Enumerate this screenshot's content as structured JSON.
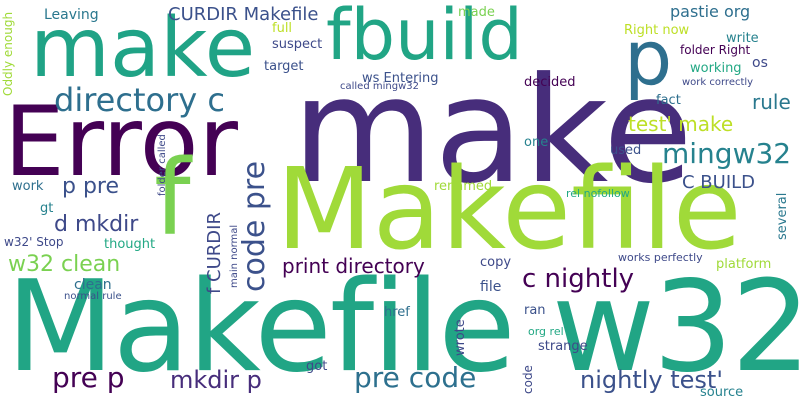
{
  "words": [
    {
      "text": "make",
      "color": "#472d7b"
    },
    {
      "text": "Makefile w32",
      "color": "#21a585"
    },
    {
      "text": "Makefile",
      "color": "#a0da39"
    },
    {
      "text": "Error",
      "color": "#440154"
    },
    {
      "text": "make",
      "color": "#20a386"
    },
    {
      "text": "fbuild",
      "color": "#21a585"
    },
    {
      "text": "p",
      "color": "#2e6f8e"
    },
    {
      "text": "f",
      "color": "#7ad151"
    },
    {
      "text": "directory c",
      "color": "#2e6f8e"
    },
    {
      "text": "code pre",
      "color": "#3b518b"
    },
    {
      "text": "mingw32",
      "color": "#26828e"
    },
    {
      "text": "pre code",
      "color": "#2d708e"
    },
    {
      "text": "pre p",
      "color": "#440154"
    },
    {
      "text": "mkdir p",
      "color": "#472d7b"
    },
    {
      "text": "nightly test'",
      "color": "#3b518b"
    },
    {
      "text": "c nightly",
      "color": "#440154"
    },
    {
      "text": "p pre",
      "color": "#3b518b"
    },
    {
      "text": "w32 clean",
      "color": "#7ad151"
    },
    {
      "text": "d mkdir",
      "color": "#3e4989"
    },
    {
      "text": "print directory",
      "color": "#440154"
    },
    {
      "text": "test' make",
      "color": "#bddf26"
    },
    {
      "text": "rule",
      "color": "#2a788e"
    },
    {
      "text": "C BUILD",
      "color": "#3b518b"
    },
    {
      "text": "f CURDIR",
      "color": "#3e4989"
    },
    {
      "text": "CURDIR Makefile",
      "color": "#3b518b"
    },
    {
      "text": "pastie org",
      "color": "#2e6f8e"
    },
    {
      "text": "os",
      "color": "#3e4989"
    },
    {
      "text": "folder Right",
      "color": "#440154"
    },
    {
      "text": "write",
      "color": "#26828e"
    },
    {
      "text": "Right now",
      "color": "#bddf26"
    },
    {
      "text": "Leaving",
      "color": "#2a788e"
    },
    {
      "text": "made",
      "color": "#7ad151"
    },
    {
      "text": "full",
      "color": "#bddf26"
    },
    {
      "text": "suspect",
      "color": "#3e4989"
    },
    {
      "text": "target",
      "color": "#3b518b"
    },
    {
      "text": "ws  Entering",
      "color": "#3b518b"
    },
    {
      "text": "called mingw32",
      "color": "#3e4989"
    },
    {
      "text": "decided",
      "color": "#440154"
    },
    {
      "text": "working",
      "color": "#22a884"
    },
    {
      "text": "work correctly",
      "color": "#3e4989"
    },
    {
      "text": "fact",
      "color": "#2e6f8e"
    },
    {
      "text": "one",
      "color": "#26828e"
    },
    {
      "text": "used",
      "color": "#3b518b"
    },
    {
      "text": "renamed",
      "color": "#a0da39"
    },
    {
      "text": "rel nofollow",
      "color": "#22a884"
    },
    {
      "text": "several",
      "color": "#2a788e"
    },
    {
      "text": "Oddly enough",
      "color": "#a0da39"
    },
    {
      "text": "work",
      "color": "#2e6f8e"
    },
    {
      "text": "gt",
      "color": "#26828e"
    },
    {
      "text": "w32' Stop",
      "color": "#3e4989"
    },
    {
      "text": "thought",
      "color": "#22a884"
    },
    {
      "text": "folder called",
      "color": "#3e4989"
    },
    {
      "text": "main normal",
      "color": "#3e4989"
    },
    {
      "text": "copy",
      "color": "#3e4989"
    },
    {
      "text": "works perfectly",
      "color": "#3e4989"
    },
    {
      "text": "platform",
      "color": "#a0da39"
    },
    {
      "text": "clean",
      "color": "#2e6f8e"
    },
    {
      "text": "normal rule",
      "color": "#3b518b"
    },
    {
      "text": "file",
      "color": "#3b518b"
    },
    {
      "text": "href",
      "color": "#2e6f8e"
    },
    {
      "text": "wrote",
      "color": "#3e4989"
    },
    {
      "text": "ran",
      "color": "#3b518b"
    },
    {
      "text": "org rel",
      "color": "#22a884"
    },
    {
      "text": "strange",
      "color": "#3e4989"
    },
    {
      "text": "got",
      "color": "#3e4989"
    },
    {
      "text": "code",
      "color": "#3e4989"
    },
    {
      "text": "source",
      "color": "#26828e"
    }
  ]
}
